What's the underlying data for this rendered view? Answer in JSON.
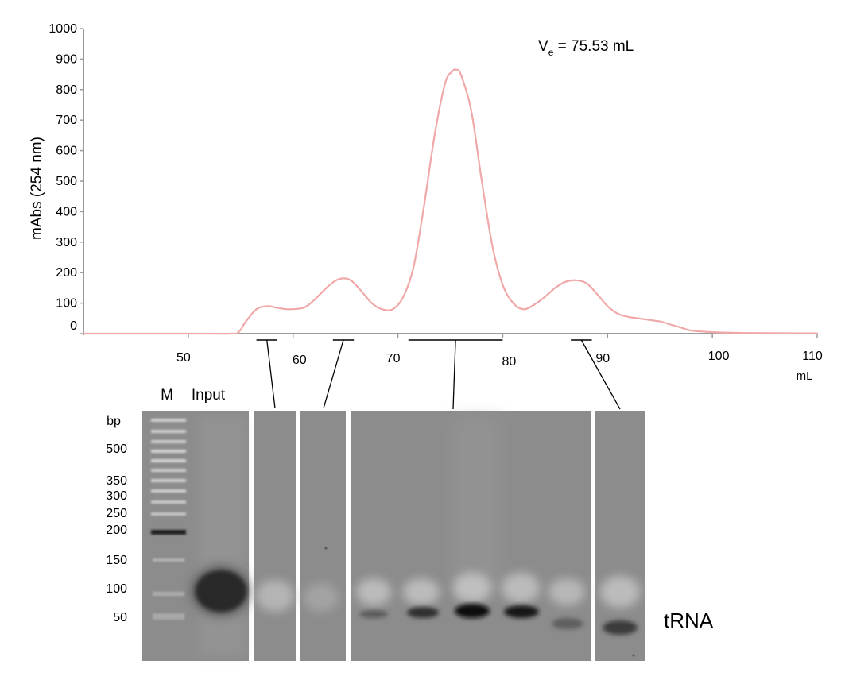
{
  "chart_data": {
    "type": "line",
    "ylabel": "mAbs (254 nm)",
    "xlabel": "mL",
    "annotation": {
      "prefix": "V",
      "subscript": "e",
      "text": " = 75.53 mL"
    },
    "xlim": [
      40,
      110
    ],
    "ylim": [
      0,
      1000
    ],
    "x_ticks": [
      "50",
      "60",
      "70",
      "80",
      "90",
      "100",
      "110"
    ],
    "y_ticks": [
      "0",
      "100",
      "200",
      "300",
      "400",
      "500",
      "600",
      "700",
      "800",
      "900",
      "1000"
    ],
    "line_color": "#f0a8a8",
    "series": [
      {
        "x": [
          40,
          50,
          54,
          54.8,
          55.5,
          56.5,
          57.5,
          58.5,
          59.5,
          61,
          62,
          63.5,
          64.5,
          65.5,
          66.5,
          67.5,
          68.5,
          69.5,
          70.5,
          71.5,
          72.5,
          73.5,
          74.5,
          75.2,
          75.53,
          76,
          77,
          78,
          79,
          80,
          81,
          82,
          83,
          84,
          85,
          86,
          87,
          88,
          89,
          90,
          91,
          92,
          93,
          94,
          95,
          96,
          97,
          98,
          100,
          102,
          104,
          110
        ],
        "y": [
          0,
          0,
          0,
          5,
          40,
          80,
          90,
          85,
          80,
          85,
          110,
          160,
          180,
          175,
          140,
          100,
          80,
          80,
          120,
          220,
          420,
          650,
          820,
          860,
          865,
          850,
          730,
          500,
          290,
          160,
          100,
          80,
          95,
          120,
          150,
          170,
          175,
          165,
          130,
          90,
          65,
          55,
          50,
          45,
          40,
          30,
          20,
          10,
          5,
          3,
          2,
          1
        ]
      }
    ]
  },
  "fractions": [
    {
      "x_from": 56.5,
      "x_to": 58.5,
      "lane_index": 2
    },
    {
      "x_from": 63.8,
      "x_to": 65.8,
      "lane_index": 3
    },
    {
      "x_from": 71,
      "x_to": 80,
      "lane_index": 4
    },
    {
      "x_from": 86.5,
      "x_to": 88.5,
      "lane_index": 5
    }
  ],
  "gel": {
    "unit_label": "bp",
    "lane_labels": [
      "M",
      "Input"
    ],
    "markers": [
      "500",
      "350",
      "300",
      "250",
      "200",
      "150",
      "100",
      "50"
    ],
    "band_label": "tRNA"
  }
}
